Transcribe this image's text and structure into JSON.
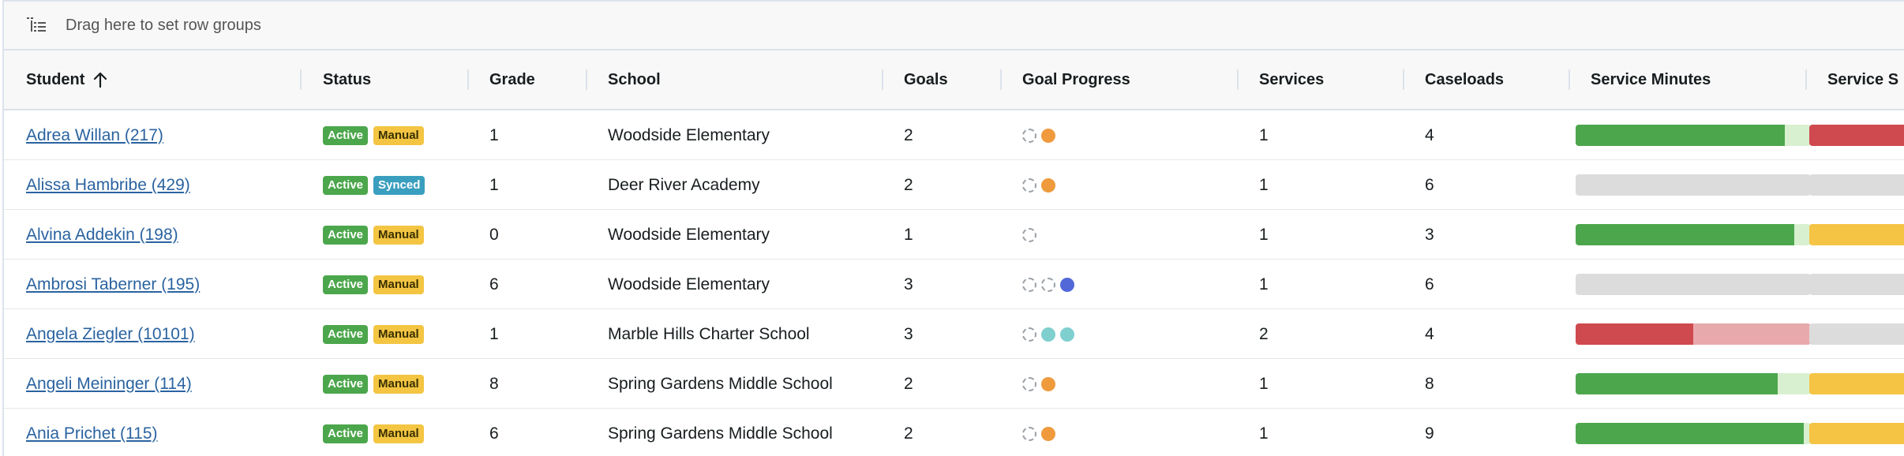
{
  "group_panel": {
    "text": "Drag here to set row groups",
    "icon": "row-groups-icon"
  },
  "columns": {
    "student": "Student",
    "status": "Status",
    "grade": "Grade",
    "school": "School",
    "goals": "Goals",
    "goal_progress": "Goal Progress",
    "services": "Services",
    "caseloads": "Caseloads",
    "service_minutes": "Service Minutes",
    "service_s": "Service S"
  },
  "sort": {
    "column": "Student",
    "direction": "ascending",
    "icon": "arrow-up-icon"
  },
  "colors": {
    "green": "#4ca64c",
    "light_green": "#d8f0d0",
    "red": "#cf4a4f",
    "light_red": "#e8a9ac",
    "gray": "#dcdcdc",
    "yellow": "#f5c445",
    "orange": "#ef9a3c",
    "teal": "#7fcfcf",
    "blue": "#5368d8"
  },
  "rows": [
    {
      "student": "Adrea Willan (217)",
      "status": "Active",
      "sync": "Manual",
      "grade": "1",
      "school": "Woodside Elementary",
      "goals": "2",
      "services": "1",
      "caseloads": "4",
      "goal_progress": [
        "empty",
        "orange"
      ],
      "minutes_bar": [
        {
          "color": "green",
          "fraction": 0.89
        },
        {
          "color": "light_green",
          "fraction": 0.11
        }
      ],
      "next_bar": [
        {
          "color": "red",
          "fraction": 1.0
        }
      ]
    },
    {
      "student": "Alissa Hambribe (429)",
      "status": "Active",
      "sync": "Synced",
      "grade": "1",
      "school": "Deer River Academy",
      "goals": "2",
      "services": "1",
      "caseloads": "6",
      "goal_progress": [
        "empty",
        "orange"
      ],
      "minutes_bar": [
        {
          "color": "gray",
          "fraction": 1.0
        }
      ],
      "next_bar": [
        {
          "color": "gray",
          "fraction": 1.0
        }
      ]
    },
    {
      "student": "Alvina Addekin (198)",
      "status": "Active",
      "sync": "Manual",
      "grade": "0",
      "school": "Woodside Elementary",
      "goals": "1",
      "services": "1",
      "caseloads": "3",
      "goal_progress": [
        "empty"
      ],
      "minutes_bar": [
        {
          "color": "green",
          "fraction": 0.93
        },
        {
          "color": "light_green",
          "fraction": 0.07
        }
      ],
      "next_bar": [
        {
          "color": "yellow",
          "fraction": 1.0
        }
      ]
    },
    {
      "student": "Ambrosi Taberner (195)",
      "status": "Active",
      "sync": "Manual",
      "grade": "6",
      "school": "Woodside Elementary",
      "goals": "3",
      "services": "1",
      "caseloads": "6",
      "goal_progress": [
        "empty",
        "empty",
        "blue"
      ],
      "minutes_bar": [
        {
          "color": "gray",
          "fraction": 1.0
        }
      ],
      "next_bar": [
        {
          "color": "gray",
          "fraction": 1.0
        }
      ]
    },
    {
      "student": "Angela Ziegler (10101)",
      "status": "Active",
      "sync": "Manual",
      "grade": "1",
      "school": "Marble Hills Charter School",
      "goals": "3",
      "services": "2",
      "caseloads": "4",
      "goal_progress": [
        "empty",
        "teal",
        "teal"
      ],
      "minutes_bar": [
        {
          "color": "red",
          "fraction": 0.5
        },
        {
          "color": "light_red",
          "fraction": 0.5
        }
      ],
      "next_bar": [
        {
          "color": "gray",
          "fraction": 1.0
        }
      ]
    },
    {
      "student": "Angeli Meininger (114)",
      "status": "Active",
      "sync": "Manual",
      "grade": "8",
      "school": "Spring Gardens Middle School",
      "goals": "2",
      "services": "1",
      "caseloads": "8",
      "goal_progress": [
        "empty",
        "orange"
      ],
      "minutes_bar": [
        {
          "color": "green",
          "fraction": 0.86
        },
        {
          "color": "light_green",
          "fraction": 0.14
        }
      ],
      "next_bar": [
        {
          "color": "yellow",
          "fraction": 1.0
        }
      ]
    },
    {
      "student": "Ania Prichet (115)",
      "status": "Active",
      "sync": "Manual",
      "grade": "6",
      "school": "Spring Gardens Middle School",
      "goals": "2",
      "services": "1",
      "caseloads": "9",
      "goal_progress": [
        "empty",
        "orange"
      ],
      "minutes_bar": [
        {
          "color": "green",
          "fraction": 0.97
        },
        {
          "color": "light_green",
          "fraction": 0.03
        }
      ],
      "next_bar": [
        {
          "color": "yellow",
          "fraction": 1.0
        }
      ]
    }
  ]
}
